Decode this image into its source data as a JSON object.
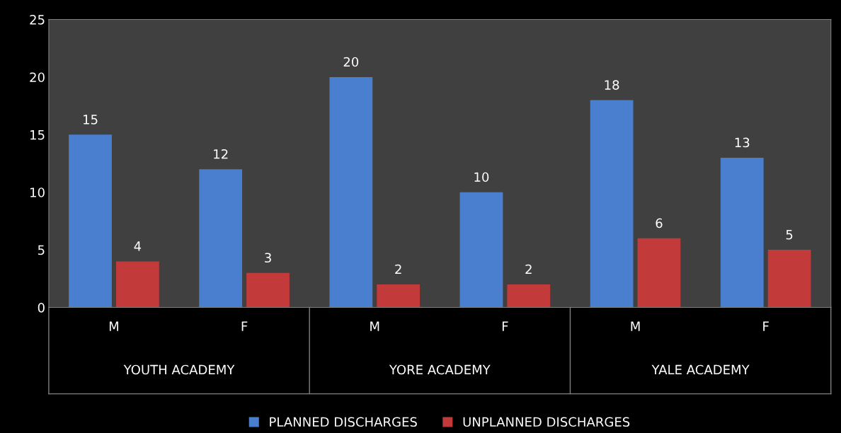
{
  "chart_data": {
    "type": "bar",
    "categories": [
      "M",
      "F",
      "M",
      "F",
      "M",
      "F"
    ],
    "annotations": [
      "YOUTH ACADEMY",
      "YORE ACADEMY",
      "YALE ACADEMY"
    ],
    "series": [
      {
        "name": "PLANNED DISCHARGES",
        "color": "#4a7fd0",
        "values": [
          15,
          12,
          20,
          10,
          18,
          13
        ]
      },
      {
        "name": "UNPLANNED DISCHARGES",
        "color": "#c23a3a",
        "values": [
          4,
          3,
          2,
          2,
          6,
          5
        ]
      }
    ],
    "ylim": [
      0,
      25
    ],
    "yticks": [
      0,
      5,
      10,
      15,
      20,
      25
    ],
    "data_labels": true,
    "grid": false,
    "legend": "bottom"
  }
}
